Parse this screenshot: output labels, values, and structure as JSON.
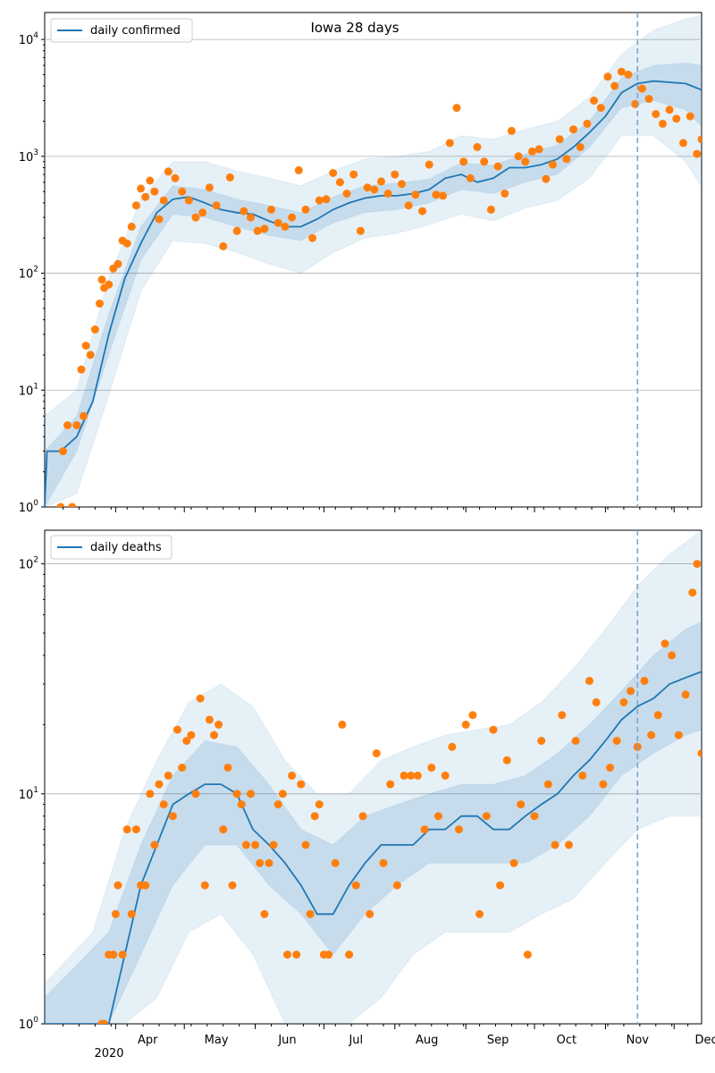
{
  "figure": {
    "title": "Iowa 28 days"
  },
  "x_axis": {
    "month_labels": [
      "Apr",
      "May",
      "Jun",
      "Jul",
      "Aug",
      "Sep",
      "Oct",
      "Nov",
      "Dec"
    ],
    "month_dates": [
      "2020-04-01",
      "2020-05-01",
      "2020-06-01",
      "2020-07-01",
      "2020-08-01",
      "2020-09-01",
      "2020-10-01",
      "2020-11-01",
      "2020-12-01"
    ],
    "year_label": "2020"
  },
  "colors": {
    "model_line": "#1f77b4",
    "observed": "#ff7f0e",
    "band": "#1f77b4",
    "grid": "#b0b0b0",
    "forecast_marker": "#7aa6c8"
  },
  "chart_data": [
    {
      "type": "line",
      "title": "Iowa 28 days",
      "legend": "daily confirmed",
      "legend_position": "top-left",
      "y_scale": "log",
      "xlim": [
        "2020-03-01",
        "2020-12-13"
      ],
      "ylim": [
        1,
        17000
      ],
      "y_ticks": [
        "10^0",
        "10^1",
        "10^2",
        "10^3",
        "10^4"
      ],
      "grid": "y",
      "forecast_start": "2020-11-15",
      "model_median": {
        "dates": [
          "2020-03-01",
          "2020-03-02",
          "2020-03-08",
          "2020-03-15",
          "2020-03-22",
          "2020-03-29",
          "2020-04-05",
          "2020-04-12",
          "2020-04-19",
          "2020-04-26",
          "2020-05-03",
          "2020-05-10",
          "2020-05-17",
          "2020-05-24",
          "2020-05-31",
          "2020-06-07",
          "2020-06-14",
          "2020-06-21",
          "2020-06-28",
          "2020-07-05",
          "2020-07-12",
          "2020-07-19",
          "2020-07-26",
          "2020-08-02",
          "2020-08-09",
          "2020-08-16",
          "2020-08-23",
          "2020-08-30",
          "2020-09-06",
          "2020-09-13",
          "2020-09-20",
          "2020-09-27",
          "2020-10-04",
          "2020-10-11",
          "2020-10-18",
          "2020-10-25",
          "2020-11-01",
          "2020-11-08",
          "2020-11-15",
          "2020-11-22",
          "2020-11-29",
          "2020-12-06",
          "2020-12-13"
        ],
        "values": [
          1,
          3,
          3,
          4,
          8,
          30,
          90,
          180,
          330,
          430,
          450,
          400,
          350,
          330,
          320,
          280,
          250,
          250,
          290,
          350,
          400,
          440,
          460,
          460,
          480,
          520,
          650,
          700,
          600,
          650,
          800,
          800,
          850,
          950,
          1200,
          1600,
          2200,
          3500,
          4200,
          4400,
          4300,
          4200,
          3700
        ]
      },
      "bands": [
        {
          "name": "inner",
          "dates": [
            "2020-03-01",
            "2020-03-15",
            "2020-03-29",
            "2020-04-12",
            "2020-04-26",
            "2020-05-10",
            "2020-05-24",
            "2020-06-07",
            "2020-06-21",
            "2020-07-05",
            "2020-07-19",
            "2020-08-02",
            "2020-08-16",
            "2020-08-30",
            "2020-09-13",
            "2020-09-27",
            "2020-10-11",
            "2020-10-25",
            "2020-11-08",
            "2020-11-22",
            "2020-12-06",
            "2020-12-13"
          ],
          "lower": [
            1,
            3,
            20,
            130,
            320,
            300,
            250,
            210,
            190,
            270,
            330,
            350,
            400,
            520,
            480,
            600,
            700,
            1200,
            2600,
            3000,
            2500,
            1800
          ],
          "upper": [
            3,
            6,
            45,
            250,
            560,
            520,
            430,
            380,
            330,
            450,
            560,
            590,
            640,
            880,
            840,
            1050,
            1250,
            2000,
            4700,
            6000,
            6300,
            6000
          ]
        },
        {
          "name": "outer",
          "dates": [
            "2020-03-01",
            "2020-03-15",
            "2020-03-29",
            "2020-04-12",
            "2020-04-26",
            "2020-05-10",
            "2020-05-24",
            "2020-06-07",
            "2020-06-21",
            "2020-07-05",
            "2020-07-19",
            "2020-08-02",
            "2020-08-16",
            "2020-08-30",
            "2020-09-13",
            "2020-09-27",
            "2020-10-11",
            "2020-10-25",
            "2020-11-08",
            "2020-11-22",
            "2020-12-06",
            "2020-12-13"
          ],
          "lower": [
            1,
            1.3,
            9,
            70,
            190,
            180,
            150,
            120,
            100,
            150,
            200,
            220,
            260,
            320,
            280,
            360,
            420,
            650,
            1500,
            1500,
            900,
            550
          ],
          "upper": [
            6,
            10,
            90,
            430,
            900,
            900,
            750,
            650,
            560,
            750,
            950,
            1000,
            1100,
            1500,
            1400,
            1700,
            2000,
            3200,
            7500,
            12000,
            15000,
            16000
          ]
        }
      ],
      "observed": {
        "dates": [
          "2020-03-08",
          "2020-03-09",
          "2020-03-11",
          "2020-03-13",
          "2020-03-15",
          "2020-03-17",
          "2020-03-18",
          "2020-03-19",
          "2020-03-21",
          "2020-03-23",
          "2020-03-25",
          "2020-03-26",
          "2020-03-27",
          "2020-03-29",
          "2020-03-31",
          "2020-04-02",
          "2020-04-04",
          "2020-04-06",
          "2020-04-08",
          "2020-04-10",
          "2020-04-12",
          "2020-04-14",
          "2020-04-16",
          "2020-04-18",
          "2020-04-20",
          "2020-04-22",
          "2020-04-24",
          "2020-04-27",
          "2020-04-30",
          "2020-05-03",
          "2020-05-06",
          "2020-05-09",
          "2020-05-12",
          "2020-05-15",
          "2020-05-18",
          "2020-05-21",
          "2020-05-24",
          "2020-05-27",
          "2020-05-30",
          "2020-06-02",
          "2020-06-05",
          "2020-06-08",
          "2020-06-11",
          "2020-06-14",
          "2020-06-17",
          "2020-06-20",
          "2020-06-23",
          "2020-06-26",
          "2020-06-29",
          "2020-07-02",
          "2020-07-05",
          "2020-07-08",
          "2020-07-11",
          "2020-07-14",
          "2020-07-17",
          "2020-07-20",
          "2020-07-23",
          "2020-07-26",
          "2020-07-29",
          "2020-08-01",
          "2020-08-04",
          "2020-08-07",
          "2020-08-10",
          "2020-08-13",
          "2020-08-16",
          "2020-08-19",
          "2020-08-22",
          "2020-08-25",
          "2020-08-28",
          "2020-08-31",
          "2020-09-03",
          "2020-09-06",
          "2020-09-09",
          "2020-09-12",
          "2020-09-15",
          "2020-09-18",
          "2020-09-21",
          "2020-09-24",
          "2020-09-27",
          "2020-09-30",
          "2020-10-03",
          "2020-10-06",
          "2020-10-09",
          "2020-10-12",
          "2020-10-15",
          "2020-10-18",
          "2020-10-21",
          "2020-10-24",
          "2020-10-27",
          "2020-10-30",
          "2020-11-02",
          "2020-11-05",
          "2020-11-08",
          "2020-11-11",
          "2020-11-14",
          "2020-11-17",
          "2020-11-20",
          "2020-11-23",
          "2020-11-26",
          "2020-11-29",
          "2020-12-02",
          "2020-12-05",
          "2020-12-08",
          "2020-12-11",
          "2020-12-13"
        ],
        "values": [
          1,
          3,
          5,
          1,
          5,
          15,
          6,
          24,
          20,
          33,
          55,
          88,
          75,
          80,
          110,
          120,
          190,
          180,
          250,
          380,
          530,
          450,
          620,
          500,
          290,
          420,
          740,
          650,
          500,
          420,
          300,
          330,
          540,
          380,
          170,
          660,
          230,
          340,
          300,
          230,
          240,
          350,
          270,
          250,
          300,
          760,
          350,
          200,
          420,
          430,
          720,
          600,
          480,
          700,
          230,
          540,
          520,
          610,
          480,
          700,
          580,
          380,
          470,
          340,
          850,
          470,
          460,
          1300,
          2600,
          900,
          650,
          1200,
          900,
          350,
          820,
          480,
          1650,
          1000,
          900,
          1100,
          1150,
          640,
          850,
          1400,
          950,
          1700,
          1200,
          1900,
          3000,
          2600,
          4800,
          4000,
          5300,
          5000,
          2800,
          3800,
          3100,
          2300,
          1900,
          2500,
          2100,
          1300,
          2200,
          1050,
          1400
        ]
      }
    },
    {
      "type": "line",
      "legend": "daily deaths",
      "legend_position": "top-left",
      "y_scale": "log",
      "xlim": [
        "2020-03-01",
        "2020-12-13"
      ],
      "ylim": [
        1,
        140
      ],
      "y_ticks": [
        "10^0",
        "10^1",
        "10^2"
      ],
      "grid": "y",
      "forecast_start": "2020-11-15",
      "model_median": {
        "dates": [
          "2020-03-01",
          "2020-03-22",
          "2020-03-29",
          "2020-04-05",
          "2020-04-12",
          "2020-04-19",
          "2020-04-26",
          "2020-05-03",
          "2020-05-10",
          "2020-05-17",
          "2020-05-24",
          "2020-05-31",
          "2020-06-07",
          "2020-06-14",
          "2020-06-21",
          "2020-06-28",
          "2020-07-05",
          "2020-07-12",
          "2020-07-19",
          "2020-07-26",
          "2020-08-02",
          "2020-08-09",
          "2020-08-16",
          "2020-08-23",
          "2020-08-30",
          "2020-09-06",
          "2020-09-13",
          "2020-09-20",
          "2020-09-27",
          "2020-10-04",
          "2020-10-11",
          "2020-10-18",
          "2020-10-25",
          "2020-11-01",
          "2020-11-08",
          "2020-11-15",
          "2020-11-22",
          "2020-11-29",
          "2020-12-06",
          "2020-12-13"
        ],
        "values": [
          1,
          1,
          1,
          2,
          4,
          6,
          9,
          10,
          11,
          11,
          10,
          7,
          6,
          5,
          4,
          3,
          3,
          4,
          5,
          6,
          6,
          6,
          7,
          7,
          8,
          8,
          7,
          7,
          8,
          9,
          10,
          12,
          14,
          17,
          21,
          24,
          26,
          30,
          32,
          34
        ]
      },
      "bands": [
        {
          "name": "inner",
          "dates": [
            "2020-03-01",
            "2020-03-29",
            "2020-04-12",
            "2020-04-26",
            "2020-05-10",
            "2020-05-24",
            "2020-06-07",
            "2020-06-21",
            "2020-07-05",
            "2020-07-19",
            "2020-08-02",
            "2020-08-16",
            "2020-08-30",
            "2020-09-13",
            "2020-09-27",
            "2020-10-11",
            "2020-10-25",
            "2020-11-08",
            "2020-11-22",
            "2020-12-06",
            "2020-12-13"
          ],
          "lower": [
            1,
            1,
            2,
            4,
            6,
            6,
            4,
            3,
            2,
            3,
            4,
            5,
            5,
            5,
            5,
            6,
            8,
            12,
            15,
            18,
            19
          ],
          "upper": [
            1.3,
            2.5,
            6,
            12,
            17,
            16,
            11,
            7,
            6,
            8,
            9,
            10,
            11,
            11,
            12,
            15,
            20,
            28,
            40,
            52,
            56
          ]
        },
        {
          "name": "outer",
          "dates": [
            "2020-03-01",
            "2020-03-22",
            "2020-04-05",
            "2020-04-19",
            "2020-05-03",
            "2020-05-17",
            "2020-05-31",
            "2020-06-14",
            "2020-06-28",
            "2020-07-12",
            "2020-07-26",
            "2020-08-09",
            "2020-08-23",
            "2020-09-06",
            "2020-09-20",
            "2020-10-04",
            "2020-10-18",
            "2020-11-01",
            "2020-11-15",
            "2020-11-29",
            "2020-12-13"
          ],
          "lower": [
            1,
            1,
            1,
            1.3,
            2.5,
            3,
            2,
            1,
            1,
            1,
            1.3,
            2,
            2.5,
            2.5,
            2.5,
            3,
            3.5,
            5,
            7,
            8,
            8
          ],
          "upper": [
            1.5,
            2.5,
            7,
            14,
            25,
            30,
            24,
            14,
            10,
            10,
            14,
            16,
            18,
            19,
            20,
            25,
            35,
            52,
            80,
            110,
            140
          ]
        }
      ],
      "observed": {
        "dates": [
          "2020-03-26",
          "2020-03-27",
          "2020-03-29",
          "2020-03-31",
          "2020-04-01",
          "2020-04-02",
          "2020-04-04",
          "2020-04-06",
          "2020-04-08",
          "2020-04-10",
          "2020-04-12",
          "2020-04-14",
          "2020-04-16",
          "2020-04-18",
          "2020-04-20",
          "2020-04-22",
          "2020-04-24",
          "2020-04-26",
          "2020-04-28",
          "2020-04-30",
          "2020-05-02",
          "2020-05-04",
          "2020-05-06",
          "2020-05-08",
          "2020-05-10",
          "2020-05-12",
          "2020-05-14",
          "2020-05-16",
          "2020-05-18",
          "2020-05-20",
          "2020-05-22",
          "2020-05-24",
          "2020-05-26",
          "2020-05-28",
          "2020-05-30",
          "2020-06-01",
          "2020-06-03",
          "2020-06-05",
          "2020-06-07",
          "2020-06-09",
          "2020-06-11",
          "2020-06-13",
          "2020-06-15",
          "2020-06-17",
          "2020-06-19",
          "2020-06-21",
          "2020-06-23",
          "2020-06-25",
          "2020-06-27",
          "2020-06-29",
          "2020-07-01",
          "2020-07-03",
          "2020-07-06",
          "2020-07-09",
          "2020-07-12",
          "2020-07-15",
          "2020-07-18",
          "2020-07-21",
          "2020-07-24",
          "2020-07-27",
          "2020-07-30",
          "2020-08-02",
          "2020-08-05",
          "2020-08-08",
          "2020-08-11",
          "2020-08-14",
          "2020-08-17",
          "2020-08-20",
          "2020-08-23",
          "2020-08-26",
          "2020-08-29",
          "2020-09-01",
          "2020-09-04",
          "2020-09-07",
          "2020-09-10",
          "2020-09-13",
          "2020-09-16",
          "2020-09-19",
          "2020-09-22",
          "2020-09-25",
          "2020-09-28",
          "2020-10-01",
          "2020-10-04",
          "2020-10-07",
          "2020-10-10",
          "2020-10-13",
          "2020-10-16",
          "2020-10-19",
          "2020-10-22",
          "2020-10-25",
          "2020-10-28",
          "2020-10-31",
          "2020-11-03",
          "2020-11-06",
          "2020-11-09",
          "2020-11-12",
          "2020-11-15",
          "2020-11-18",
          "2020-11-21",
          "2020-11-24",
          "2020-11-27",
          "2020-11-30",
          "2020-12-03",
          "2020-12-06",
          "2020-12-09",
          "2020-12-11",
          "2020-12-13"
        ],
        "values": [
          1,
          1,
          2,
          2,
          3,
          4,
          2,
          7,
          3,
          7,
          4,
          4,
          10,
          6,
          11,
          9,
          12,
          8,
          19,
          13,
          17,
          18,
          10,
          26,
          4,
          21,
          18,
          20,
          7,
          13,
          4,
          10,
          9,
          6,
          10,
          6,
          5,
          3,
          5,
          6,
          9,
          10,
          2,
          12,
          2,
          11,
          6,
          3,
          8,
          9,
          2,
          2,
          5,
          20,
          2,
          4,
          8,
          3,
          15,
          5,
          11,
          4,
          12,
          12,
          12,
          7,
          13,
          8,
          12,
          16,
          7,
          20,
          22,
          3,
          8,
          19,
          4,
          14,
          5,
          9,
          2,
          8,
          17,
          11,
          6,
          22,
          6,
          17,
          12,
          31,
          25,
          11,
          13,
          17,
          25,
          28,
          16,
          31,
          18,
          22,
          45,
          40,
          18,
          27,
          75,
          100,
          15
        ]
      }
    }
  ]
}
